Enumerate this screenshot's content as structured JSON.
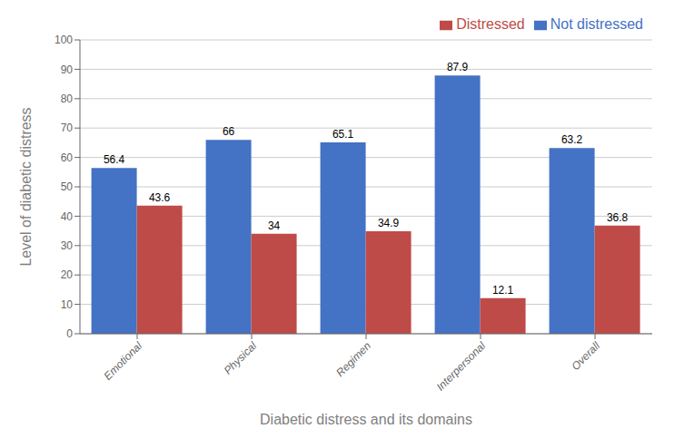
{
  "chart_data": {
    "type": "bar",
    "xlabel": "Diabetic distress and its domains",
    "ylabel": "Level  of  diabetic distress",
    "categories": [
      "Emotional",
      "Physical",
      "Regimen",
      "Interpersonal",
      "Overall"
    ],
    "series": [
      {
        "name": "Not distressed",
        "color": "#4472C4",
        "values": [
          56.4,
          66,
          65.1,
          87.9,
          63.2
        ]
      },
      {
        "name": "Distressed",
        "color": "#BE4B48",
        "values": [
          43.6,
          34,
          34.9,
          12.1,
          36.8
        ]
      }
    ],
    "ylim": [
      0,
      100
    ],
    "yticks": [
      0,
      10,
      20,
      30,
      40,
      50,
      60,
      70,
      80,
      90,
      100
    ],
    "grid": true,
    "legend": "upper right",
    "data_labels": true
  }
}
